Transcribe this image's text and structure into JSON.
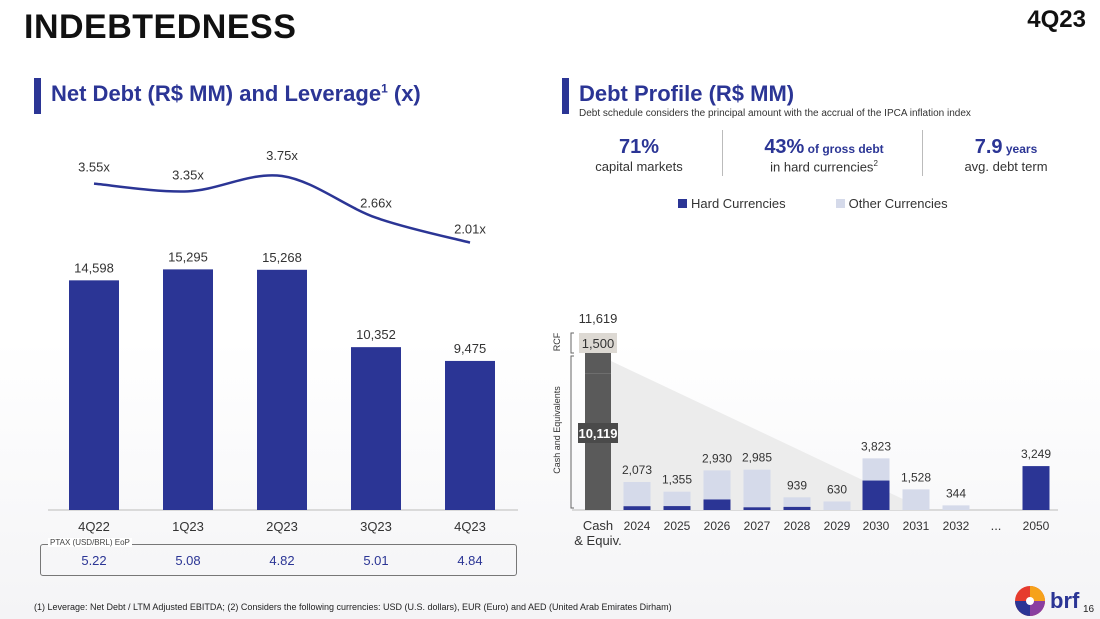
{
  "header": {
    "title": "INDEBTEDNESS",
    "quarter": "4Q23"
  },
  "left": {
    "title": "Net Debt (R$ MM) and Leverage",
    "title_sup": "1",
    "title_suffix": " (x)"
  },
  "right": {
    "title": "Debt Profile (R$ MM)",
    "note": "Debt schedule considers the principal amount with the accrual of the IPCA inflation index",
    "kpis": [
      {
        "big": "71%",
        "suffix": "",
        "sub": "capital markets",
        "sub_sup": ""
      },
      {
        "big": "43%",
        "suffix": " of gross debt",
        "sub": "in hard currencies",
        "sub_sup": "2"
      },
      {
        "big": "7.9",
        "suffix": " years",
        "sub": "avg. debt term",
        "sub_sup": ""
      }
    ],
    "legend": {
      "hard": "Hard Currencies",
      "other": "Other Currencies"
    }
  },
  "footnote": "(1) Leverage: Net Debt / LTM Adjusted EBITDA; (2) Considers the following currencies: USD (U.S. dollars), EUR (Euro) and AED (United Arab Emirates Dirham)",
  "logo": {
    "text": "brf"
  },
  "page_number": "16",
  "colors": {
    "navy": "#2b3595",
    "light": "#d5daea",
    "gray": "#5a5a5a",
    "rcf": "#ddd9d3"
  },
  "chart_data": [
    {
      "type": "bar",
      "title": "Net Debt (R$ MM) and Leverage",
      "categories": [
        "4Q22",
        "1Q23",
        "2Q23",
        "3Q23",
        "4Q23"
      ],
      "values": [
        14598,
        15295,
        15268,
        10352,
        9475
      ],
      "value_labels": [
        "14,598",
        "15,295",
        "15,268",
        "10,352",
        "9,475"
      ],
      "ylim": [
        0,
        15700
      ],
      "line": {
        "name": "Leverage",
        "values": [
          3.55,
          3.35,
          3.75,
          2.66,
          2.01
        ],
        "labels": [
          "3.55x",
          "3.35x",
          "3.75x",
          "2.66x",
          "2.01x"
        ]
      },
      "table": {
        "label": "PTAX (USD/BRL) EoP",
        "values": [
          "5.22",
          "5.08",
          "4.82",
          "5.01",
          "4.84"
        ]
      }
    },
    {
      "type": "bar",
      "title": "Debt Profile (R$ MM)",
      "categories": [
        "Cash & Equiv.",
        "2024",
        "2025",
        "2026",
        "2027",
        "2028",
        "2029",
        "2030",
        "2031",
        "2032",
        "...",
        "2050"
      ],
      "cash": {
        "cash_equivalents": 10119,
        "rcf": 1500,
        "total": 11619,
        "labels": {
          "cash": "10,119",
          "rcf": "1,500",
          "total": "11,619"
        },
        "axis_labels": {
          "cash": "Cash and Equivalents",
          "rcf": "RCF"
        },
        "xlabel_line1": "Cash",
        "xlabel_line2": "& Equiv."
      },
      "ylim": [
        0,
        11619
      ],
      "series": [
        {
          "name": "Hard Currencies",
          "values": [
            null,
            280,
            290,
            780,
            200,
            230,
            0,
            2180,
            0,
            0,
            null,
            3249
          ]
        },
        {
          "name": "Other Currencies",
          "values": [
            null,
            1793,
            1065,
            2150,
            2785,
            709,
            630,
            1643,
            1528,
            344,
            null,
            0
          ]
        }
      ],
      "totals": [
        null,
        2073,
        1355,
        2930,
        2985,
        939,
        630,
        3823,
        1528,
        344,
        null,
        3249
      ],
      "total_labels": [
        "",
        "2,073",
        "1,355",
        "2,930",
        "2,985",
        "939",
        "630",
        "3,823",
        "1,528",
        "344",
        "",
        "3,249"
      ]
    }
  ]
}
